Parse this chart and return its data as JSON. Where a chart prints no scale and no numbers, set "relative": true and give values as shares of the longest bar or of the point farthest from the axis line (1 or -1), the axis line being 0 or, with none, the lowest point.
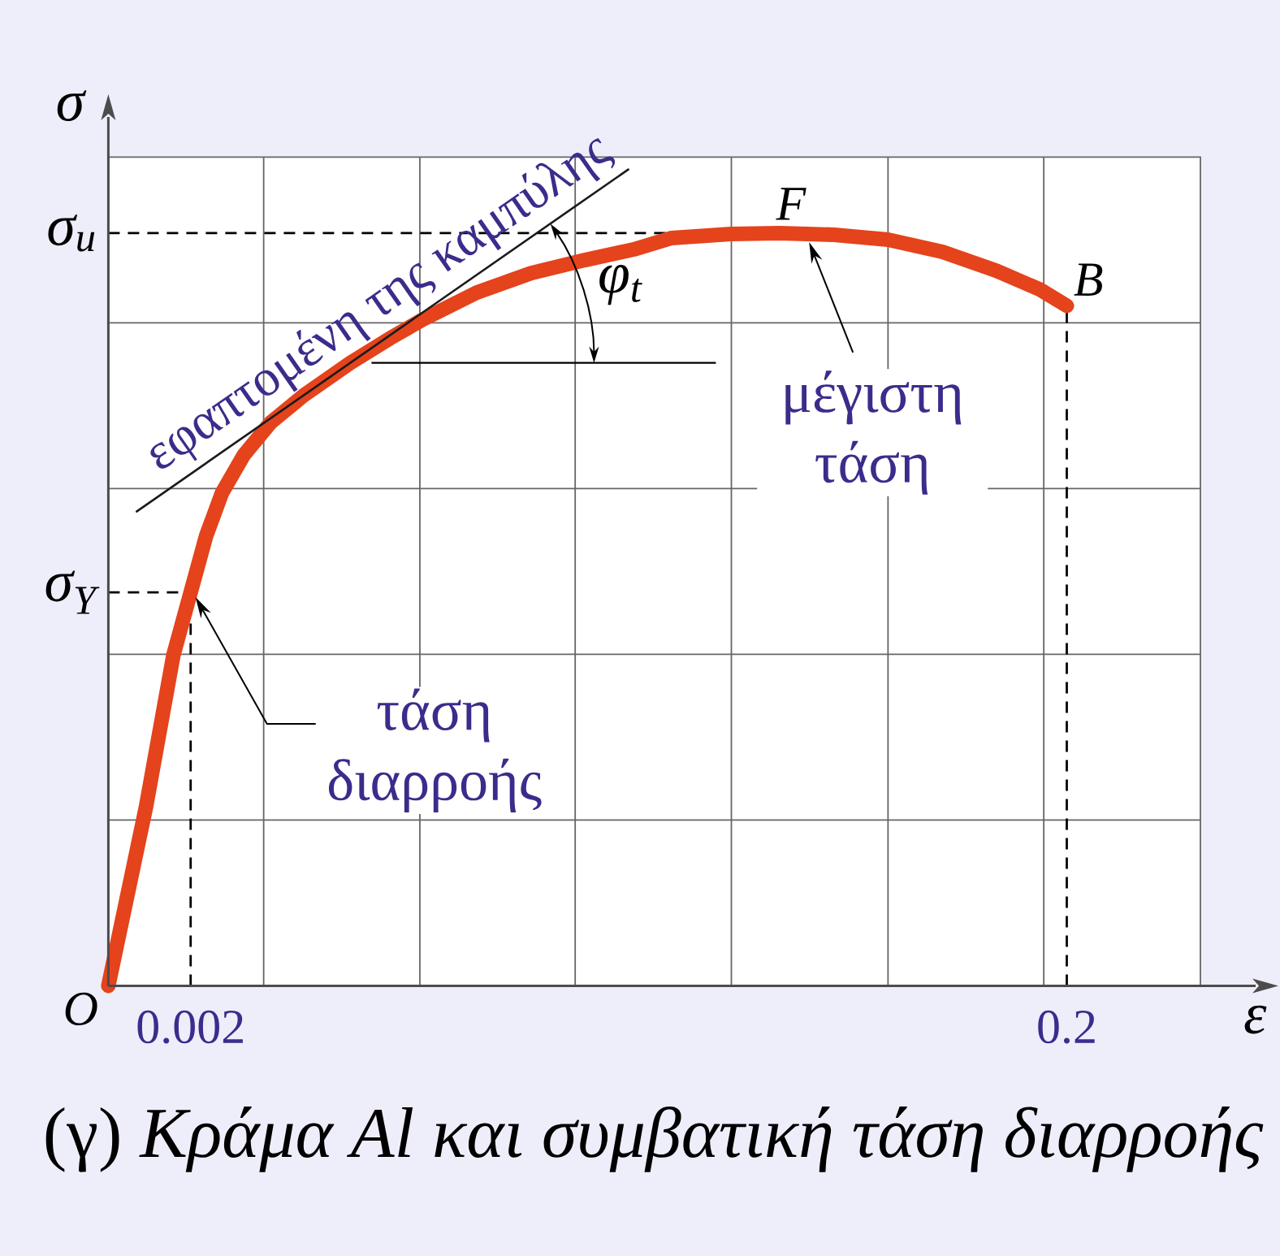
{
  "chart_data": {
    "type": "line",
    "relative": true,
    "xlabel": "ε",
    "ylabel": "σ",
    "xlim": [
      -0.0166,
      0.2302
    ],
    "xticks": [
      0.002,
      {
        "value": 0.0185,
        "label": null
      },
      {
        "value": 0.0538,
        "label": null
      },
      {
        "value": 0.0889,
        "label": null
      },
      {
        "value": 0.1242,
        "label": null
      },
      {
        "value": 0.1596,
        "label": null
      },
      {
        "value": 0.1948,
        "label": null
      },
      0.2
    ],
    "grid": true,
    "series": [
      {
        "color": "#e4431c",
        "x": [
          -0.0166,
          -0.0081,
          -0.0019,
          0.002,
          0.0055,
          0.0091,
          0.014,
          0.0201,
          0.0275,
          0.0381,
          0.047,
          0.0544,
          0.0666,
          0.0789,
          0.0911,
          0.1021,
          0.1107,
          0.1241,
          0.1351,
          0.1474,
          0.1596,
          0.1719,
          0.1841,
          0.1939,
          0.2
        ],
        "values": [
          0,
          0.219,
          0.405,
          0.482,
          0.551,
          0.604,
          0.65,
          0.69,
          0.723,
          0.763,
          0.793,
          0.816,
          0.849,
          0.873,
          0.889,
          0.902,
          0.916,
          0.921,
          0.922,
          0.92,
          0.914,
          0.899,
          0.876,
          0.853,
          0.833
        ]
      },
      {
        "name": "εφαπτομένη της καμπύλης",
        "color": "#1a1a1a",
        "x": [
          -0.0102,
          0.1009
        ],
        "values": [
          0.581,
          1
        ]
      }
    ],
    "ref_lines": [
      {
        "axis": "y",
        "value": 0.922,
        "label": "σ$_{u}$",
        "line_style": "dashed"
      },
      {
        "axis": "y",
        "value": 0.482,
        "label": "σ$_{Y}$",
        "line_style": "dashed"
      },
      {
        "axis": "x",
        "value": 0.002,
        "line_style": "dashed"
      },
      {
        "axis": "x",
        "value": 0.2,
        "line_style": "dashed"
      }
    ],
    "annotations": [
      {
        "text": "F",
        "x": 0.1351,
        "y": 0.922
      },
      {
        "text": "B",
        "x": 0.2,
        "y": 0.833
      },
      {
        "text": "O",
        "x": -0.0166,
        "y": 0
      },
      {
        "text": "μέγιστη τάση",
        "x": 0.1414,
        "y": 0.921
      },
      {
        "text": "τάση διαρροής",
        "x": 0.002,
        "y": 0.482
      },
      "φ$_{t}$",
      "(γ) *Κράμα Al και συμβατική τάση διαρροής*"
    ]
  }
}
